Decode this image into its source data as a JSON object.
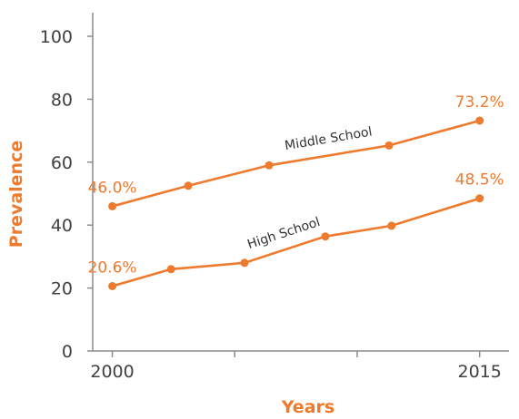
{
  "chart_data": {
    "type": "line",
    "xlabel": "Years",
    "ylabel": "Prevalence",
    "ylim": [
      0,
      100
    ],
    "y_ticks": [
      0,
      20,
      40,
      60,
      80,
      100
    ],
    "xlim": [
      1999.2,
      2016.2
    ],
    "x_ticks": [
      2000,
      2005,
      2010,
      2015
    ],
    "x_tick_labels": [
      "2000",
      "",
      "",
      "2015"
    ],
    "x": [
      2000,
      2002.5,
      2005,
      2007.5,
      2010,
      2012.5,
      2015
    ],
    "grid": false,
    "series": [
      {
        "name": "Middle School",
        "x": [
          2000,
          2003.1,
          2006.4,
          2011.3,
          2015
        ],
        "values": [
          46.0,
          52.5,
          59.0,
          65.3,
          73.2
        ],
        "labels": [
          {
            "x": 2000,
            "text": "46.0%"
          },
          {
            "x": 2015,
            "text": "73.2%"
          }
        ]
      },
      {
        "name": "High School",
        "x": [
          2000,
          2002.4,
          2005.4,
          2008.7,
          2011.4,
          2015
        ],
        "values": [
          20.6,
          26.0,
          28.0,
          36.4,
          39.8,
          48.5
        ],
        "labels": [
          {
            "x": 2000,
            "text": "20.6%"
          },
          {
            "x": 2015,
            "text": "48.5%"
          }
        ]
      }
    ],
    "colors": {
      "series": "#ee7a2e",
      "label": "#ee7a2e",
      "axis_title": "#ee7a2e",
      "axis": "#8c8c8c"
    }
  }
}
